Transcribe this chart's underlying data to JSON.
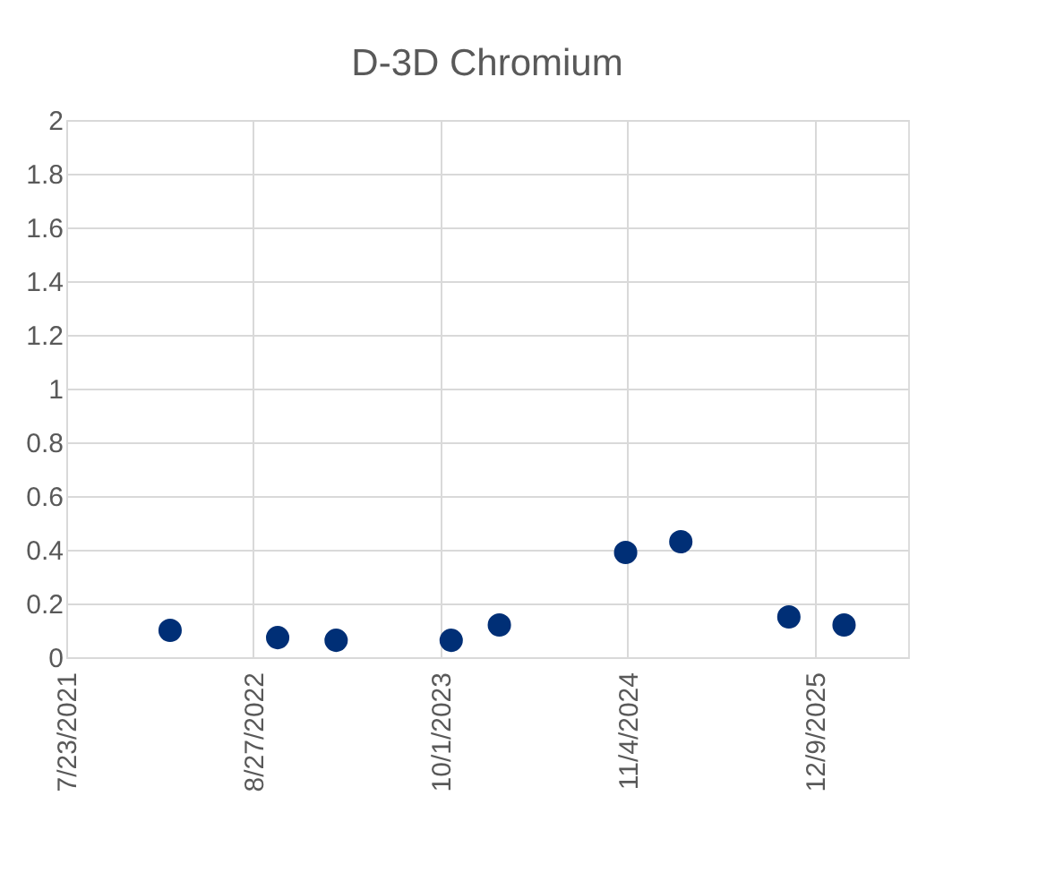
{
  "chart_data": {
    "type": "scatter",
    "title": "D-3D Chromium",
    "x": [
      "2022-03-02",
      "2022-10-18",
      "2023-02-20",
      "2023-10-24",
      "2024-02-04",
      "2024-10-31",
      "2025-02-26",
      "2025-10-15",
      "2026-02-10"
    ],
    "series": [
      {
        "color": "#002f76",
        "values": [
          0.1,
          0.073,
          0.063,
          0.063,
          0.12,
          0.39,
          0.43,
          0.15,
          0.12
        ]
      }
    ],
    "xlim": [
      "2021-07-23",
      "2026-06-27"
    ],
    "xticks": [
      {
        "value": "2021-07-23",
        "label": "7/23/2021"
      },
      {
        "value": "2022-08-27",
        "label": "8/27/2022"
      },
      {
        "value": "2023-10-01",
        "label": "10/1/2023"
      },
      {
        "value": "2024-11-04",
        "label": "11/4/2024"
      },
      {
        "value": "2025-12-09",
        "label": "12/9/2025"
      }
    ],
    "ylim": [
      0,
      2
    ],
    "yticks": [
      0,
      0.2,
      0.4,
      0.6,
      0.8,
      1,
      1.2,
      1.4,
      1.6,
      1.8,
      2
    ],
    "grid": true,
    "marker": "circle"
  }
}
